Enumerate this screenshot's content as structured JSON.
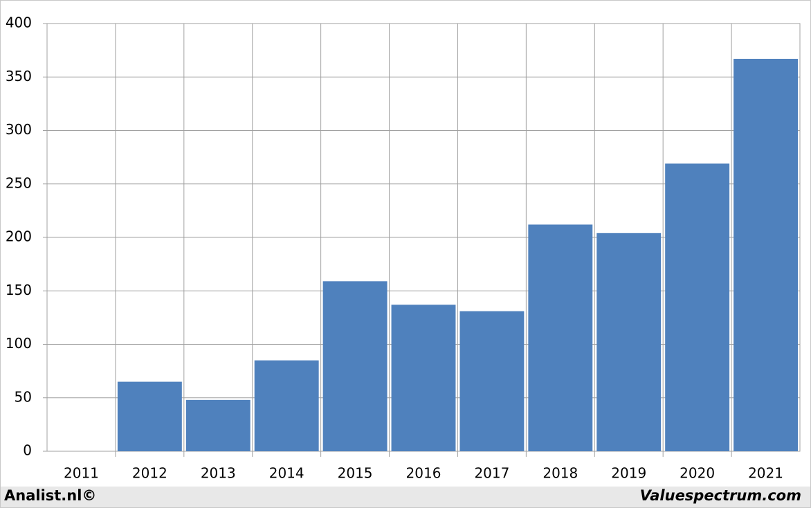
{
  "chart_data": {
    "type": "bar",
    "categories": [
      "2011",
      "2012",
      "2013",
      "2014",
      "2015",
      "2016",
      "2017",
      "2018",
      "2019",
      "2020",
      "2021"
    ],
    "values": [
      null,
      65,
      48,
      85,
      159,
      137,
      131,
      212,
      204,
      269,
      367
    ],
    "color": "#4f81bd",
    "ylim": [
      0,
      400
    ],
    "yticks": [
      0,
      50,
      100,
      150,
      200,
      250,
      300,
      350,
      400
    ],
    "grid": true
  },
  "footer": {
    "left": "Analist.nl©",
    "right": "Valuespectrum.com"
  }
}
